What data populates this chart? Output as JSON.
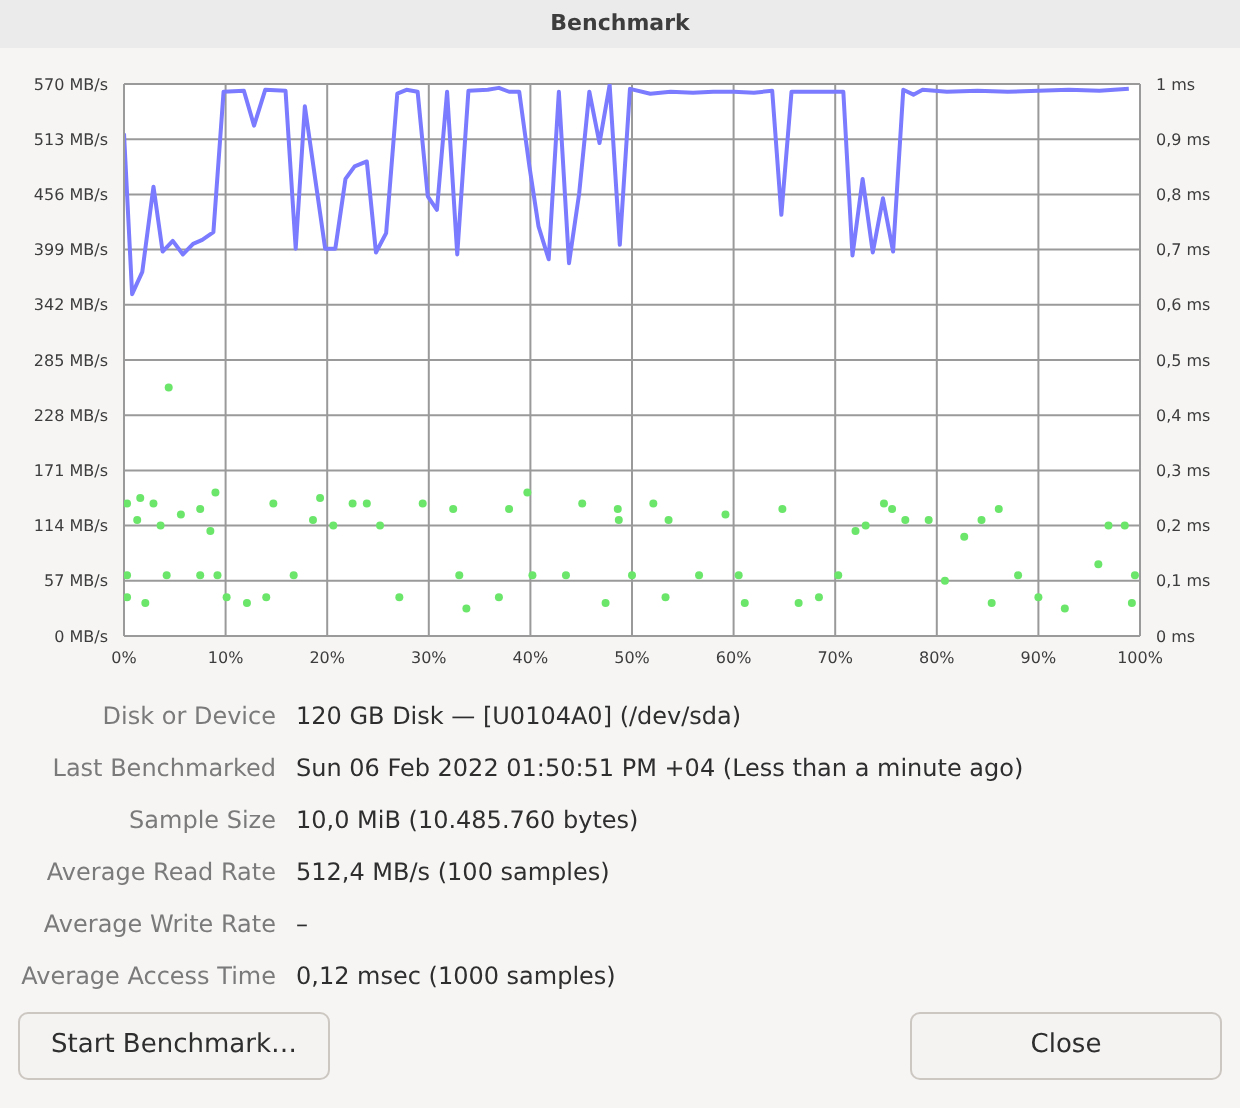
{
  "chart_data": {
    "type": "line",
    "title": "Benchmark",
    "xlim": [
      0,
      100
    ],
    "xticks": [
      {
        "value": 0,
        "label": "0%"
      },
      {
        "value": 10,
        "label": "10%"
      },
      {
        "value": 20,
        "label": "20%"
      },
      {
        "value": 30,
        "label": "30%"
      },
      {
        "value": 40,
        "label": "40%"
      },
      {
        "value": 50,
        "label": "50%"
      },
      {
        "value": 60,
        "label": "60%"
      },
      {
        "value": 70,
        "label": "70%"
      },
      {
        "value": 80,
        "label": "80%"
      },
      {
        "value": 90,
        "label": "90%"
      },
      {
        "value": 100,
        "label": "100%"
      }
    ],
    "ylim": [
      0,
      570
    ],
    "yticks": [
      {
        "value": 0,
        "label": "0 MB/s"
      },
      {
        "value": 57,
        "label": "57 MB/s"
      },
      {
        "value": 114,
        "label": "114 MB/s"
      },
      {
        "value": 171,
        "label": "171 MB/s"
      },
      {
        "value": 228,
        "label": "228 MB/s"
      },
      {
        "value": 285,
        "label": "285 MB/s"
      },
      {
        "value": 342,
        "label": "342 MB/s"
      },
      {
        "value": 399,
        "label": "399 MB/s"
      },
      {
        "value": 456,
        "label": "456 MB/s"
      },
      {
        "value": 513,
        "label": "513 MB/s"
      },
      {
        "value": 570,
        "label": "570 MB/s"
      }
    ],
    "y2lim": [
      0,
      1
    ],
    "y2ticks": [
      {
        "value": 0,
        "label": "0 ms"
      },
      {
        "value": 0.1,
        "label": "0,1 ms"
      },
      {
        "value": 0.2,
        "label": "0,2 ms"
      },
      {
        "value": 0.3,
        "label": "0,3 ms"
      },
      {
        "value": 0.4,
        "label": "0,4 ms"
      },
      {
        "value": 0.5,
        "label": "0,5 ms"
      },
      {
        "value": 0.6,
        "label": "0,6 ms"
      },
      {
        "value": 0.7,
        "label": "0,7 ms"
      },
      {
        "value": 0.8,
        "label": "0,8 ms"
      },
      {
        "value": 0.9,
        "label": "0,9 ms"
      },
      {
        "value": 1,
        "label": "1 ms"
      }
    ],
    "grid": true,
    "legend": false,
    "series": [
      {
        "color": "#7b7bff",
        "marker": "none",
        "x": [
          0,
          0.8,
          1.8,
          2.9,
          3.8,
          4.8,
          5.8,
          6.8,
          7.7,
          8.8,
          9.8,
          11.8,
          12.8,
          13.9,
          15.9,
          16.9,
          17.8,
          19.8,
          20.8,
          21.8,
          22.7,
          23.9,
          24.8,
          25.8,
          26.9,
          27.8,
          28.9,
          29.9,
          30.8,
          31.8,
          32.8,
          33.9,
          35.8,
          36.9,
          37.9,
          38.9,
          39.9,
          40.8,
          41.8,
          42.8,
          43.8,
          44.8,
          45.8,
          46.8,
          47.8,
          48.8,
          49.8,
          51.8,
          53.8,
          56,
          58,
          60,
          62,
          63.8,
          64.7,
          65.7,
          68,
          70.8,
          71.7,
          72.7,
          73.7,
          74.7,
          75.7,
          76.7,
          77.7,
          78.6,
          81,
          84,
          87,
          90,
          93,
          96,
          98.9
        ],
        "values": [
          519,
          353,
          376,
          464,
          397,
          408,
          394,
          405,
          409,
          417,
          562,
          563,
          527,
          564,
          563,
          400,
          547,
          400,
          400,
          472,
          485,
          490,
          396,
          416,
          560,
          564,
          562,
          454,
          440,
          562,
          394,
          563,
          564,
          566,
          562,
          562,
          485,
          423,
          389,
          562,
          385,
          457,
          562,
          509,
          569,
          404,
          565,
          560,
          562,
          561,
          562,
          562,
          561,
          563,
          435,
          562,
          562,
          562,
          393,
          472,
          396,
          452,
          397,
          564,
          559,
          564,
          562,
          563,
          562,
          563,
          564,
          563,
          565
        ]
      },
      {
        "type": "scatter",
        "axis": "y2",
        "color": "#6be66b",
        "marker": "circle",
        "x": [
          4.4,
          0.3,
          1.6,
          2.9,
          1.3,
          3.6,
          5.6,
          7.5,
          9,
          8.5,
          0.3,
          4.2,
          7.5,
          9.2,
          0.3,
          2.1,
          10.1,
          12.1,
          14,
          14.7,
          16.7,
          19.3,
          18.6,
          20.6,
          22.5,
          23.9,
          25.2,
          27.1,
          29.4,
          32.4,
          33,
          33.7,
          36.9,
          39.7,
          37.9,
          40.2,
          43.5,
          45.1,
          47.4,
          48.7,
          48.6,
          52.1,
          53.6,
          50,
          53.3,
          56.6,
          59.2,
          61.1,
          60.5,
          64.8,
          66.4,
          68.4,
          70.3,
          72,
          73,
          74.8,
          75.6,
          76.9,
          79.2,
          80.8,
          82.7,
          84.4,
          86.1,
          85.4,
          88,
          90,
          92.6,
          95.9,
          96.9,
          98.5,
          99.5,
          99.2
        ],
        "values": [
          0.45,
          0.24,
          0.25,
          0.24,
          0.21,
          0.2,
          0.22,
          0.23,
          0.26,
          0.19,
          0.11,
          0.11,
          0.11,
          0.11,
          0.07,
          0.06,
          0.07,
          0.06,
          0.07,
          0.24,
          0.11,
          0.25,
          0.21,
          0.2,
          0.24,
          0.24,
          0.2,
          0.07,
          0.24,
          0.23,
          0.11,
          0.05,
          0.07,
          0.26,
          0.23,
          0.11,
          0.11,
          0.24,
          0.06,
          0.21,
          0.23,
          0.24,
          0.21,
          0.11,
          0.07,
          0.11,
          0.22,
          0.06,
          0.11,
          0.23,
          0.06,
          0.07,
          0.11,
          0.19,
          0.2,
          0.24,
          0.23,
          0.21,
          0.21,
          0.1,
          0.18,
          0.21,
          0.23,
          0.06,
          0.11,
          0.07,
          0.05,
          0.13,
          0.2,
          0.2,
          0.11,
          0.06
        ]
      }
    ],
    "annotations": [
      "Disk or Device",
      "120 GB Disk — [U0104A0] (/dev/sda)",
      "Last Benchmarked",
      "Sun 06 Feb 2022 01:50:51 PM +04 (Less than a minute ago)",
      "Sample Size",
      "10,0 MiB (10.485.760 bytes)",
      "Average Read Rate",
      "512,4 MB/s (100 samples)",
      "Average Write Rate",
      "–",
      "Average Access Time",
      "0,12 msec (1000 samples)",
      "Start Benchmark…",
      "Close"
    ]
  }
}
